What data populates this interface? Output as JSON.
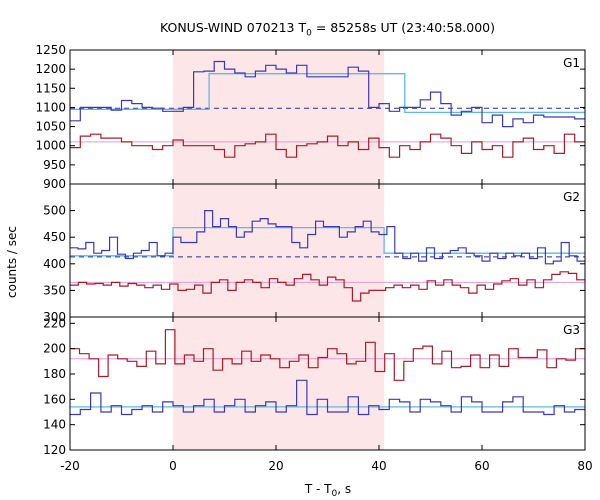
{
  "chart_data": {
    "type": "line",
    "title": "KONUS-WIND 070213 T0 = 85258s UT (23:40:58.000)",
    "title_parts": {
      "pre": "KONUS-WIND 070213 T",
      "sub": "0",
      "post": " = 85258s UT (23:40:58.000)"
    },
    "xlabel_parts": {
      "pre": "T - T",
      "sub": "0",
      "post": ", s"
    },
    "ylabel": "counts / sec",
    "xlim": [
      -20,
      80
    ],
    "x_ticks": [
      -20,
      0,
      20,
      40,
      60,
      80
    ],
    "highlight_interval": [
      0,
      41
    ],
    "panels": [
      {
        "name": "G1",
        "ylim": [
          900,
          1250
        ],
        "y_ticks": [
          900,
          950,
          1000,
          1050,
          1100,
          1150,
          1200,
          1250
        ],
        "model_steps": [
          [
            -20,
            7,
            1095
          ],
          [
            7,
            45,
            1188
          ],
          [
            45,
            80,
            1087
          ]
        ],
        "background_level": 1098,
        "fit_level": 1010,
        "series": [
          {
            "color": "#3a3ab8",
            "values": [
              1065,
              1100,
              1100,
              1100,
              1093,
              1118,
              1110,
              1100,
              1098,
              1090,
              1090,
              1100,
              1193,
              1195,
              1220,
              1200,
              1190,
              1180,
              1195,
              1210,
              1200,
              1190,
              1210,
              1180,
              1180,
              1180,
              1180,
              1205,
              1195,
              1100,
              1110,
              1090,
              1100,
              1100,
              1120,
              1140,
              1110,
              1080,
              1090,
              1100,
              1060,
              1080,
              1050,
              1070,
              1060,
              1080,
              1075,
              1075,
              1075,
              1070
            ]
          },
          {
            "color": "#a81c2c",
            "values": [
              995,
              1025,
              1030,
              1020,
              1020,
              1010,
              1000,
              1000,
              990,
              1000,
              1015,
              1000,
              1000,
              1000,
              990,
              970,
              1000,
              1005,
              1010,
              1030,
              990,
              970,
              1000,
              1005,
              1010,
              1025,
              1000,
              1010,
              990,
              1020,
              995,
              970,
              1000,
              990,
              1010,
              1030,
              1020,
              1000,
              980,
              1010,
              990,
              1000,
              970,
              1010,
              1020,
              990,
              1000,
              980,
              1030,
              1010
            ]
          }
        ]
      },
      {
        "name": "G2",
        "ylim": [
          300,
          550
        ],
        "y_ticks": [
          300,
          350,
          400,
          450,
          500
        ],
        "model_steps": [
          [
            -20,
            0,
            415
          ],
          [
            0,
            41,
            468
          ],
          [
            41,
            80,
            420
          ]
        ],
        "background_level": 413,
        "fit_level": 365,
        "series": [
          {
            "color": "#3a3ab8",
            "values": [
              430,
              428,
              440,
              420,
              425,
              450,
              418,
              410,
              420,
              425,
              440,
              415,
              420,
              450,
              440,
              440,
              460,
              500,
              470,
              485,
              470,
              450,
              460,
              480,
              485,
              475,
              470,
              470,
              440,
              430,
              455,
              480,
              470,
              470,
              450,
              460,
              470,
              480,
              460,
              455,
              470,
              420,
              410,
              420,
              405,
              430,
              410,
              420,
              425,
              430,
              420,
              415,
              405,
              420,
              410,
              420,
              415,
              420,
              410,
              430,
              400,
              405,
              440,
              415,
              405
            ]
          },
          {
            "color": "#a81c2c",
            "values": [
              360,
              365,
              362,
              363,
              360,
              365,
              358,
              363,
              360,
              355,
              360,
              352,
              362,
              350,
              352,
              360,
              345,
              365,
              370,
              350,
              365,
              370,
              365,
              355,
              372,
              365,
              360,
              372,
              380,
              370,
              360,
              375,
              370,
              355,
              330,
              345,
              350,
              350,
              355,
              360,
              355,
              360,
              352,
              368,
              360,
              370,
              360,
              355,
              345,
              360,
              352,
              362,
              368,
              372,
              360,
              370,
              355,
              370,
              380,
              385,
              382,
              370
            ]
          }
        ]
      },
      {
        "name": "G3",
        "ylim": [
          120,
          225
        ],
        "y_ticks": [
          120,
          140,
          160,
          180,
          200,
          220
        ],
        "model_steps": [
          [
            -20,
            80,
            154
          ]
        ],
        "fit_level": 192,
        "series": [
          {
            "color": "#a81c2c",
            "values": [
              200,
              196,
              192,
              178,
              195,
              192,
              190,
              186,
              198,
              188,
              215,
              188,
              195,
              190,
              200,
              183,
              192,
              188,
              198,
              190,
              195,
              192,
              185,
              190,
              195,
              185,
              193,
              200,
              196,
              188,
              190,
              205,
              182,
              196,
              175,
              190,
              200,
              202,
              188,
              198,
              185,
              186,
              195,
              185,
              195,
              186,
              200,
              193,
              193,
              199,
              185,
              192,
              191,
              200
            ]
          },
          {
            "color": "#3a3ab8",
            "values": [
              148,
              152,
              165,
              150,
              155,
              148,
              152,
              155,
              150,
              158,
              155,
              150,
              155,
              160,
              150,
              155,
              160,
              150,
              155,
              158,
              150,
              155,
              175,
              148,
              160,
              150,
              150,
              162,
              148,
              155,
              152,
              160,
              158,
              150,
              160,
              158,
              155,
              150,
              162,
              158,
              150,
              150,
              158,
              162,
              150,
              150,
              148,
              155,
              150,
              152
            ]
          }
        ]
      }
    ]
  }
}
